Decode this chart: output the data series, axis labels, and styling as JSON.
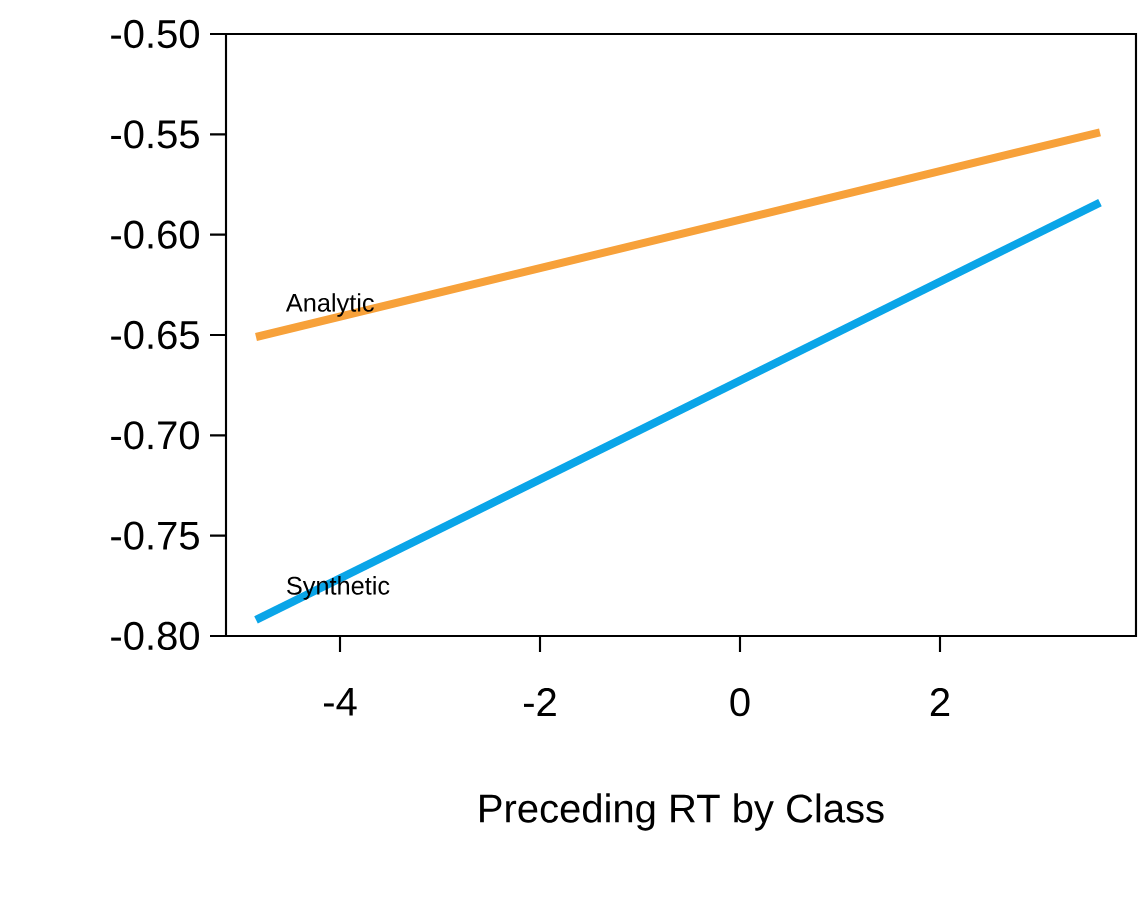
{
  "chart_data": {
    "type": "line",
    "xlabel": "Preceding RT by Class",
    "x": [
      -4.84,
      3.6
    ],
    "series": [
      {
        "name": "Analytic",
        "color": "#f7a13a",
        "values": [
          -0.651,
          -0.549
        ]
      },
      {
        "name": "Synthetic",
        "color": "#0aa5e8",
        "values": [
          -0.792,
          -0.584
        ]
      }
    ],
    "xlim": [
      -5.14,
      3.96
    ],
    "ylim": [
      -0.8,
      -0.5
    ],
    "xticks": [
      -4,
      -2,
      0,
      2
    ],
    "yticks": [
      {
        "value": -0.8,
        "label": "-0.80"
      },
      {
        "value": -0.75,
        "label": "-0.75"
      },
      {
        "value": -0.7,
        "label": "-0.70"
      },
      {
        "value": -0.65,
        "label": "-0.65"
      },
      {
        "value": -0.6,
        "label": "-0.60"
      },
      {
        "value": -0.55,
        "label": "-0.55"
      },
      {
        "value": -0.5,
        "label": "-0.50"
      }
    ],
    "grid": false,
    "legend": false,
    "marker": "none",
    "line_style": "solid"
  }
}
